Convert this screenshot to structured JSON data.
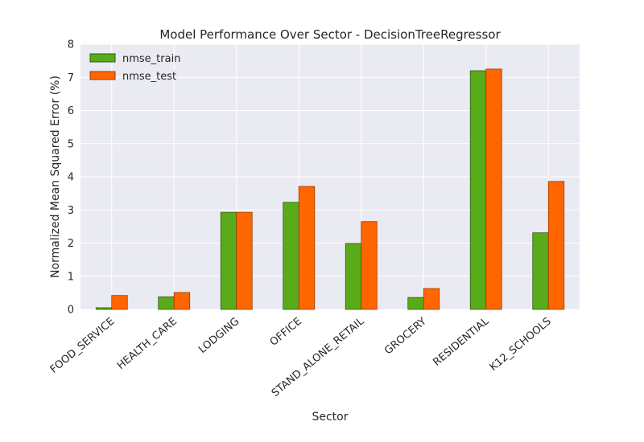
{
  "chart_data": {
    "type": "bar",
    "title": "Model Performance Over Sector - DecisionTreeRegressor",
    "xlabel": "Sector",
    "ylabel": "Normalized Mean Squared Error (%)",
    "ylim": [
      0,
      8
    ],
    "yticks": [
      "0",
      "1",
      "2",
      "3",
      "4",
      "5",
      "6",
      "7",
      "8"
    ],
    "categories": [
      "FOOD_SERVICE",
      "HEALTH_CARE",
      "LODGING",
      "OFFICE",
      "STAND_ALONE_RETAIL",
      "GROCERY",
      "RESIDENTIAL",
      "K12_SCHOOLS"
    ],
    "series": [
      {
        "name": "nmse_train",
        "color": "#5aab1a",
        "values": [
          0.05,
          0.38,
          2.93,
          3.23,
          1.99,
          0.36,
          7.2,
          2.31
        ]
      },
      {
        "name": "nmse_test",
        "color": "#ff6600",
        "values": [
          0.42,
          0.51,
          2.93,
          3.71,
          2.65,
          0.63,
          7.25,
          3.86
        ]
      }
    ],
    "grid": true,
    "legend_position": "top-left"
  },
  "colors": {
    "plot_background": "#eaeaf2",
    "grid": "#ffffff",
    "text": "#262626"
  }
}
